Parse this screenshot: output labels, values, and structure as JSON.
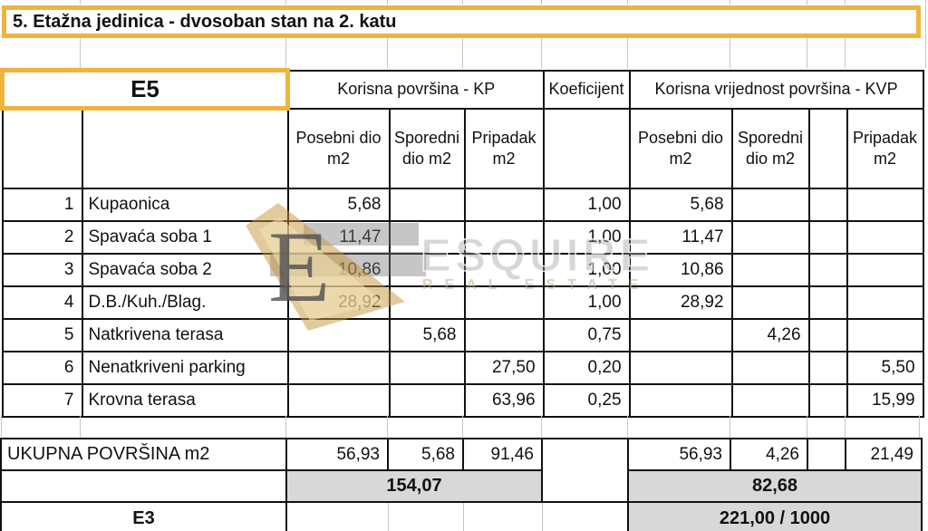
{
  "page": {
    "title": "5. Etažna jedinica - dvosoban stan na 2. katu"
  },
  "header": {
    "unit_code": "E5",
    "kp_label": "Korisna površina - KP",
    "koeficijent_label": "Koeficijent",
    "kvp_label": "Korisna vrijednost površina - KVP",
    "sub": {
      "posebni": "Posebni dio m2",
      "sporedni": "Sporedni dio m2",
      "pripadak": "Pripadak m2"
    }
  },
  "rows": [
    {
      "num": "1",
      "name": "Kupaonica",
      "kp_posebni": "5,68",
      "kp_sporedni": "",
      "kp_pripadak": "",
      "koef": "1,00",
      "kvp_posebni": "5,68",
      "kvp_sporedni": "",
      "kvp_pripadak": ""
    },
    {
      "num": "2",
      "name": "Spavaća soba 1",
      "kp_posebni": "11,47",
      "kp_sporedni": "",
      "kp_pripadak": "",
      "koef": "1,00",
      "kvp_posebni": "11,47",
      "kvp_sporedni": "",
      "kvp_pripadak": ""
    },
    {
      "num": "3",
      "name": "Spavaća soba 2",
      "kp_posebni": "10,86",
      "kp_sporedni": "",
      "kp_pripadak": "",
      "koef": "1,00",
      "kvp_posebni": "10,86",
      "kvp_sporedni": "",
      "kvp_pripadak": ""
    },
    {
      "num": "4",
      "name": "D.B./Kuh./Blag.",
      "kp_posebni": "28,92",
      "kp_sporedni": "",
      "kp_pripadak": "",
      "koef": "1,00",
      "kvp_posebni": "28,92",
      "kvp_sporedni": "",
      "kvp_pripadak": ""
    },
    {
      "num": "5",
      "name": "Natkrivena terasa",
      "kp_posebni": "",
      "kp_sporedni": "5,68",
      "kp_pripadak": "",
      "koef": "0,75",
      "kvp_posebni": "",
      "kvp_sporedni": "4,26",
      "kvp_pripadak": ""
    },
    {
      "num": "6",
      "name": "Nenatkriveni parking",
      "kp_posebni": "",
      "kp_sporedni": "",
      "kp_pripadak": "27,50",
      "koef": "0,20",
      "kvp_posebni": "",
      "kvp_sporedni": "",
      "kvp_pripadak": "5,50"
    },
    {
      "num": "7",
      "name": "Krovna terasa",
      "kp_posebni": "",
      "kp_sporedni": "",
      "kp_pripadak": "63,96",
      "koef": "0,25",
      "kvp_posebni": "",
      "kvp_sporedni": "",
      "kvp_pripadak": "15,99"
    }
  ],
  "totals": {
    "label": "UKUPNA POVRŠINA m2",
    "kp_posebni": "56,93",
    "kp_sporedni": "5,68",
    "kp_pripadak": "91,46",
    "kvp_posebni": "56,93",
    "kvp_sporedni": "4,26",
    "kvp_pripadak": "21,49",
    "kp_total": "154,07",
    "kvp_total": "82,68"
  },
  "footer": {
    "building_code": "E3",
    "share": "221,00 / 1000"
  },
  "watermark": {
    "brand": "ESQUIRE",
    "subtext": "REAL ESTATE",
    "letter": "E"
  },
  "colors": {
    "accent_orange": "#EDB540",
    "total_fill": "#D8D8D8",
    "grid_line": "#C6C6C6",
    "table_border": "#111111",
    "watermark_gold": "#C59636",
    "watermark_cream": "#F2E3B8",
    "watermark_gray": "#787878"
  }
}
